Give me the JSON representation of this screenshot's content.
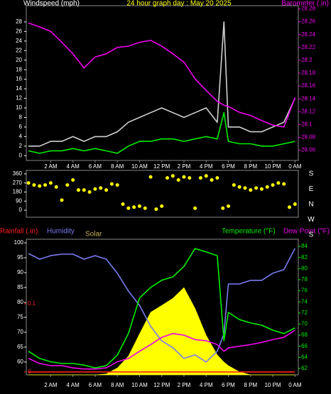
{
  "chart_data": [
    {
      "type": "line",
      "title": "24 hour graph day : May 20 2025",
      "ylabel": "Windspeed (mph)",
      "y2label": "Barometer (.in)",
      "xlim": [
        -0.2,
        24.3
      ],
      "xticks": [
        {
          "value": 2,
          "label": "2 AM"
        },
        {
          "value": 4,
          "label": "4 AM"
        },
        {
          "value": 6,
          "label": "6 AM"
        },
        {
          "value": 8,
          "label": "8 AM"
        },
        {
          "value": 10,
          "label": "10 AM"
        },
        {
          "value": 12,
          "label": "12 PM"
        },
        {
          "value": 14,
          "label": "2 PM"
        },
        {
          "value": 16,
          "label": "4 PM"
        },
        {
          "value": 18,
          "label": "6 PM"
        },
        {
          "value": 20,
          "label": "8 PM"
        },
        {
          "value": 22,
          "label": "10 PM"
        },
        {
          "value": 24,
          "label": "0 AM"
        }
      ],
      "ylim": [
        -1,
        31.4
      ],
      "yticks": [
        0,
        2,
        4,
        6,
        8,
        10,
        12,
        14,
        16,
        18,
        20,
        22,
        24,
        26,
        28
      ],
      "y2lim": [
        28.044,
        28.285
      ],
      "y2ticks": [
        28.06,
        28.08,
        28.1,
        28.12,
        28.14,
        28.16,
        28.18,
        28.2,
        28.22,
        28.24,
        28.26,
        28.28
      ],
      "x": [
        0,
        1,
        2,
        3,
        4,
        5,
        6,
        7,
        8,
        9,
        10,
        11,
        12,
        13,
        14,
        15,
        16,
        17,
        17.6,
        18,
        19,
        20,
        21,
        22,
        23,
        24
      ],
      "series": [
        {
          "color": "#d0d0d0",
          "values": [
            2,
            2,
            3,
            3,
            4,
            3,
            4,
            4,
            5,
            7,
            8,
            9,
            10,
            9,
            8,
            9,
            10,
            7,
            28,
            6,
            6,
            5,
            5,
            6,
            7,
            12
          ]
        },
        {
          "color": "#00ee00",
          "values": [
            1,
            0.5,
            1,
            1,
            1.5,
            1,
            1.5,
            1,
            0.5,
            2,
            3,
            3,
            3.5,
            3.5,
            3,
            3.5,
            4,
            3.5,
            9,
            3,
            2.5,
            2.5,
            2,
            2,
            2.5,
            3
          ]
        },
        {
          "color": "#ee00ee",
          "axis": "y2",
          "values": [
            28.258,
            28.252,
            28.245,
            28.228,
            28.21,
            28.188,
            28.205,
            28.21,
            28.22,
            28.222,
            28.228,
            28.231,
            28.222,
            28.21,
            28.197,
            28.171,
            28.153,
            28.136,
            28.13,
            28.128,
            28.119,
            28.114,
            28.106,
            28.099,
            28.096,
            28.142
          ]
        }
      ]
    },
    {
      "type": "scatter",
      "compass_labels": [
        "S",
        "E",
        "N",
        "W",
        "S"
      ],
      "xlim": [
        -0.2,
        24.3
      ],
      "ylim": [
        -70,
        395
      ],
      "yticks": [
        0,
        90,
        180,
        270,
        360
      ],
      "color": "#ffff00",
      "x": [
        0,
        0.5,
        1,
        1.5,
        2,
        2.5,
        3,
        3.5,
        4,
        4.5,
        5,
        5.5,
        6,
        6.5,
        7,
        7.5,
        8,
        8.5,
        9,
        9.5,
        10,
        10.5,
        11,
        11.5,
        12,
        12.5,
        13,
        13.5,
        14,
        14.5,
        15,
        15.5,
        16,
        16.5,
        17,
        17.5,
        18,
        18.5,
        19,
        19.5,
        20,
        20.5,
        21,
        21.5,
        22,
        22.5,
        23,
        23.5,
        24
      ],
      "values": [
        270,
        250,
        240,
        250,
        270,
        230,
        100,
        250,
        300,
        200,
        200,
        180,
        210,
        220,
        200,
        260,
        250,
        60,
        20,
        30,
        40,
        20,
        330,
        10,
        40,
        320,
        340,
        300,
        330,
        320,
        20,
        320,
        340,
        300,
        320,
        20,
        40,
        250,
        230,
        220,
        200,
        220,
        210,
        230,
        250,
        270,
        260,
        30,
        60
      ]
    },
    {
      "type": "line",
      "labels": {
        "rain": "Rainfall (.in)",
        "humidity": "Humidity",
        "solar": "Solar",
        "temperature": "Temperature (°F)",
        "dewpoint": "Dew Point (°F)"
      },
      "xlim": [
        -0.2,
        24.3
      ],
      "xticks": [
        {
          "value": 2,
          "label": "2 AM"
        },
        {
          "value": 4,
          "label": "4 AM"
        },
        {
          "value": 6,
          "label": "6 AM"
        },
        {
          "value": 8,
          "label": "8 AM"
        },
        {
          "value": 10,
          "label": "10 AM"
        },
        {
          "value": 12,
          "label": "12 PM"
        },
        {
          "value": 14,
          "label": "2 PM"
        },
        {
          "value": 16,
          "label": "4 PM"
        },
        {
          "value": 18,
          "label": "6 PM"
        },
        {
          "value": 20,
          "label": "8 PM"
        },
        {
          "value": 22,
          "label": "10 PM"
        },
        {
          "value": 24,
          "label": "0 AM"
        }
      ],
      "ylim": [
        55.7,
        101.2
      ],
      "yticks": [
        60,
        65,
        70,
        75,
        80,
        85,
        90,
        95,
        100
      ],
      "y2lim": [
        60.85,
        85.28
      ],
      "y2ticks": [
        62,
        64,
        66,
        68,
        70,
        72,
        74,
        76,
        78,
        80,
        82,
        84
      ],
      "y3lim": [
        -0.0043,
        0.1946
      ],
      "y3ticks": [
        0,
        0.1
      ],
      "x": [
        0,
        1,
        2,
        3,
        4,
        5,
        6,
        7,
        8,
        9,
        10,
        11,
        12,
        13,
        14,
        15,
        16,
        17,
        17.6,
        18,
        19,
        20,
        21,
        22,
        23,
        24
      ],
      "series": [
        {
          "color": "#ffff00",
          "kind": "area",
          "values": [
            55.7,
            55.7,
            55.7,
            55.7,
            55.7,
            55.7,
            55.7,
            56,
            58,
            62,
            69.5,
            76.7,
            79,
            81.4,
            85,
            78,
            69,
            62.4,
            60,
            58.8,
            56.7,
            55.7,
            55.7,
            55.7,
            55.7,
            55.7
          ]
        },
        {
          "color": "#7b7bf0",
          "values": [
            96.4,
            94.5,
            95.7,
            96.2,
            96.2,
            94.5,
            95.7,
            94.5,
            89.8,
            83.8,
            79,
            72,
            67.1,
            64.8,
            61.2,
            62.4,
            60,
            63.6,
            69.5,
            86.2,
            86.2,
            87.4,
            87.4,
            89.8,
            91,
            98.1
          ]
        },
        {
          "color": "#00ee00",
          "axis": "y2",
          "values": [
            65.1,
            63.8,
            63.2,
            62.9,
            62.9,
            62.6,
            62.1,
            62.5,
            64.4,
            68.3,
            74.7,
            76.6,
            77.9,
            78.5,
            80.4,
            83.6,
            83,
            82.3,
            67,
            72.1,
            70.8,
            70.2,
            69.8,
            68.9,
            68.3,
            69.3
          ]
        },
        {
          "color": "#ee00ee",
          "axis": "y2",
          "values": [
            63.8,
            62.9,
            62.5,
            62.5,
            62.1,
            61.9,
            61.9,
            62.1,
            63.2,
            63.8,
            65.1,
            66.3,
            67.6,
            68.3,
            68,
            67.2,
            67,
            66.3,
            65.1,
            65.7,
            66,
            66.3,
            66.7,
            67.2,
            67.6,
            68.9
          ]
        },
        {
          "color": "#ff2020",
          "axis": "y3",
          "values": [
            0,
            0,
            0,
            0,
            0,
            0,
            0,
            0,
            0,
            0,
            0,
            0,
            0,
            0,
            0,
            0,
            0,
            0,
            0,
            0,
            0,
            0,
            0,
            0,
            0,
            0
          ]
        }
      ]
    }
  ]
}
